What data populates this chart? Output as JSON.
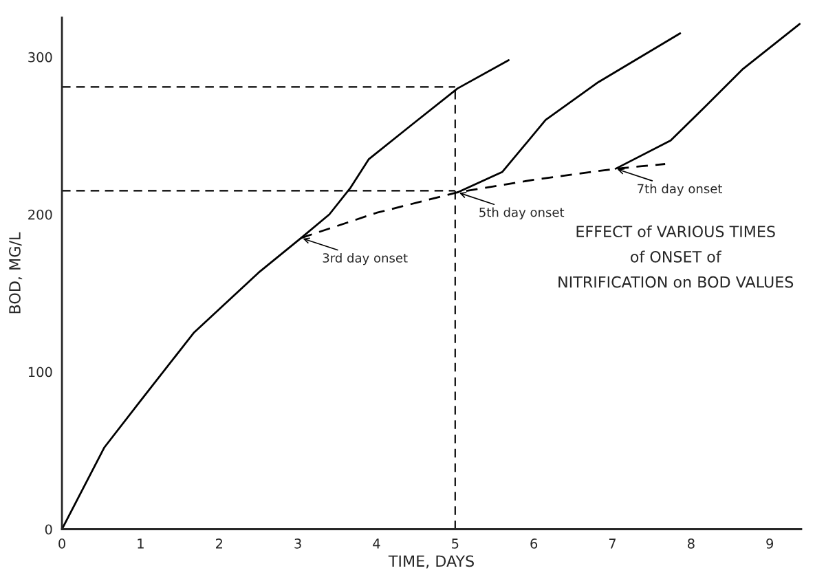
{
  "chart_data": {
    "type": "line",
    "title": "EFFECT of VARIOUS TIMES\nof ONSET of\nNITRIFICATION on BOD VALUES",
    "xlabel": "TIME, DAYS",
    "ylabel": "BOD, MG/L",
    "series": [
      {
        "color": "#000000",
        "line_style": "solid",
        "x": [
          0,
          0.54,
          0.99,
          1.68,
          2.5,
          3.04,
          3.4,
          3.67,
          3.9,
          4.45,
          5.03,
          5.68
        ],
        "values": [
          0,
          52,
          81,
          125,
          163,
          185,
          200,
          217,
          235,
          257,
          280,
          298
        ]
      },
      {
        "color": "#000000",
        "line_style": "dashed",
        "x": [
          3.04,
          4.0,
          5.03,
          6.0,
          7.04,
          7.67
        ],
        "values": [
          185,
          201,
          214,
          222,
          229,
          232
        ]
      },
      {
        "color": "#000000",
        "line_style": "solid",
        "x": [
          5.03,
          5.6,
          6.15,
          6.82,
          7.86
        ],
        "values": [
          214,
          227,
          260,
          284,
          315
        ]
      },
      {
        "color": "#000000",
        "line_style": "solid",
        "x": [
          7.04,
          7.74,
          8.19,
          8.65,
          9.38
        ],
        "values": [
          229,
          247,
          269,
          292,
          321
        ]
      }
    ],
    "annotations": [
      {
        "text": "3rd day onset",
        "x": 3.04,
        "y": 185
      },
      {
        "text": "5th day onset",
        "x": 5.03,
        "y": 214
      },
      {
        "text": "7th day onset",
        "x": 7.04,
        "y": 229
      }
    ],
    "ref_lines": [
      {
        "axis": "y",
        "value": 281,
        "color": "#000000",
        "line_style": "dashed"
      },
      {
        "axis": "y",
        "value": 215,
        "color": "#000000",
        "line_style": "dashed"
      },
      {
        "axis": "x",
        "value": 5,
        "color": "#000000",
        "line_style": "dashed"
      }
    ],
    "xlim": [
      0,
      9.4
    ],
    "ylim": [
      0,
      325
    ],
    "xticks": [
      0,
      1,
      2,
      3,
      4,
      5,
      6,
      7,
      8,
      9
    ],
    "yticks": [
      0,
      100,
      200,
      300
    ],
    "grid": false,
    "legend": false,
    "marker": "none"
  }
}
